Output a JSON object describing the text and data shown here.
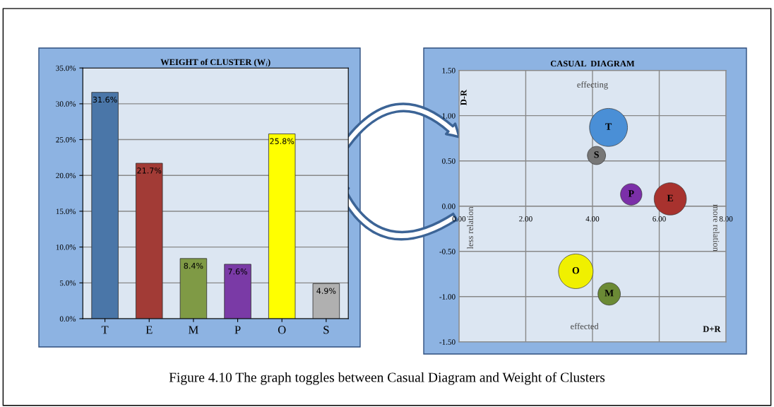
{
  "chart_data": [
    {
      "type": "bar",
      "title": "WEIGHT of CLUSTER (W$_{i}$)",
      "categories": [
        "T",
        "E",
        "M",
        "P",
        "O",
        "S"
      ],
      "values": [
        31.6,
        21.7,
        8.4,
        7.6,
        25.8,
        4.9
      ],
      "colors": [
        "#4a76a8",
        "#a23b36",
        "#7f9a45",
        "#7a3aa6",
        "#ffff00",
        "#b0b0b0"
      ],
      "value_labels": [
        "31.6%",
        "21.7%",
        "8.4%",
        "7.6%",
        "25.8%",
        "4.9%"
      ],
      "ylim": [
        0,
        35
      ],
      "yticks": [
        {
          "value": 0,
          "label": "0.0%"
        },
        {
          "value": 5,
          "label": "5.0%"
        },
        {
          "value": 10,
          "label": "10.0%"
        },
        {
          "value": 15,
          "label": "15.0%"
        },
        {
          "value": 20,
          "label": "20.0%"
        },
        {
          "value": 25,
          "label": "25.0%"
        },
        {
          "value": 30,
          "label": "30.0%"
        },
        {
          "value": 35,
          "label": "35.0%"
        }
      ],
      "grid": "y"
    },
    {
      "type": "bubble",
      "title": "CASUAL  DIAGRAM",
      "xlabel": "D+R",
      "ylabel": "D-R",
      "x": [
        4.48,
        6.33,
        4.5,
        5.16,
        3.5,
        4.12
      ],
      "values": [
        0.87,
        0.08,
        -0.97,
        0.13,
        -0.72,
        0.56
      ],
      "sizes": [
        1,
        0.72,
        0.35,
        0.32,
        0.83,
        0.23
      ],
      "colors": [
        "#4a8fd6",
        "#a8322e",
        "#6b8a35",
        "#7b2fa8",
        "#f0f000",
        "#777777"
      ],
      "xlim": [
        0,
        8
      ],
      "ylim": [
        -1.5,
        1.5
      ],
      "xticks": [
        {
          "value": 0,
          "label": "0.00"
        },
        {
          "value": 2,
          "label": "2.00"
        },
        {
          "value": 4,
          "label": "4.00"
        },
        {
          "value": 6,
          "label": "6.00"
        },
        {
          "value": 8,
          "label": "8.00"
        }
      ],
      "yticks": [
        {
          "value": -1.5,
          "label": "-1.50"
        },
        {
          "value": -1,
          "label": "-1.00"
        },
        {
          "value": -0.5,
          "label": "-0.50"
        },
        {
          "value": 0,
          "label": "0.00"
        },
        {
          "value": 0.5,
          "label": "0.50"
        },
        {
          "value": 1,
          "label": "1.00"
        },
        {
          "value": 1.5,
          "label": "1.50"
        }
      ],
      "grid": true,
      "annotations": [
        {
          "text": "T",
          "x": 4.48,
          "y": 0.87
        },
        {
          "text": "E",
          "x": 6.33,
          "y": 0.08
        },
        {
          "text": "M",
          "x": 4.5,
          "y": -0.97
        },
        {
          "text": "P",
          "x": 5.16,
          "y": 0.13
        },
        {
          "text": "O",
          "x": 3.5,
          "y": -0.72
        },
        {
          "text": "S",
          "x": 4.12,
          "y": 0.56
        },
        "effecting",
        "effected",
        "less relation",
        "more relation",
        "Figure 4.10 The graph toggles between Casual Diagram and Weight of Clusters"
      ]
    }
  ]
}
